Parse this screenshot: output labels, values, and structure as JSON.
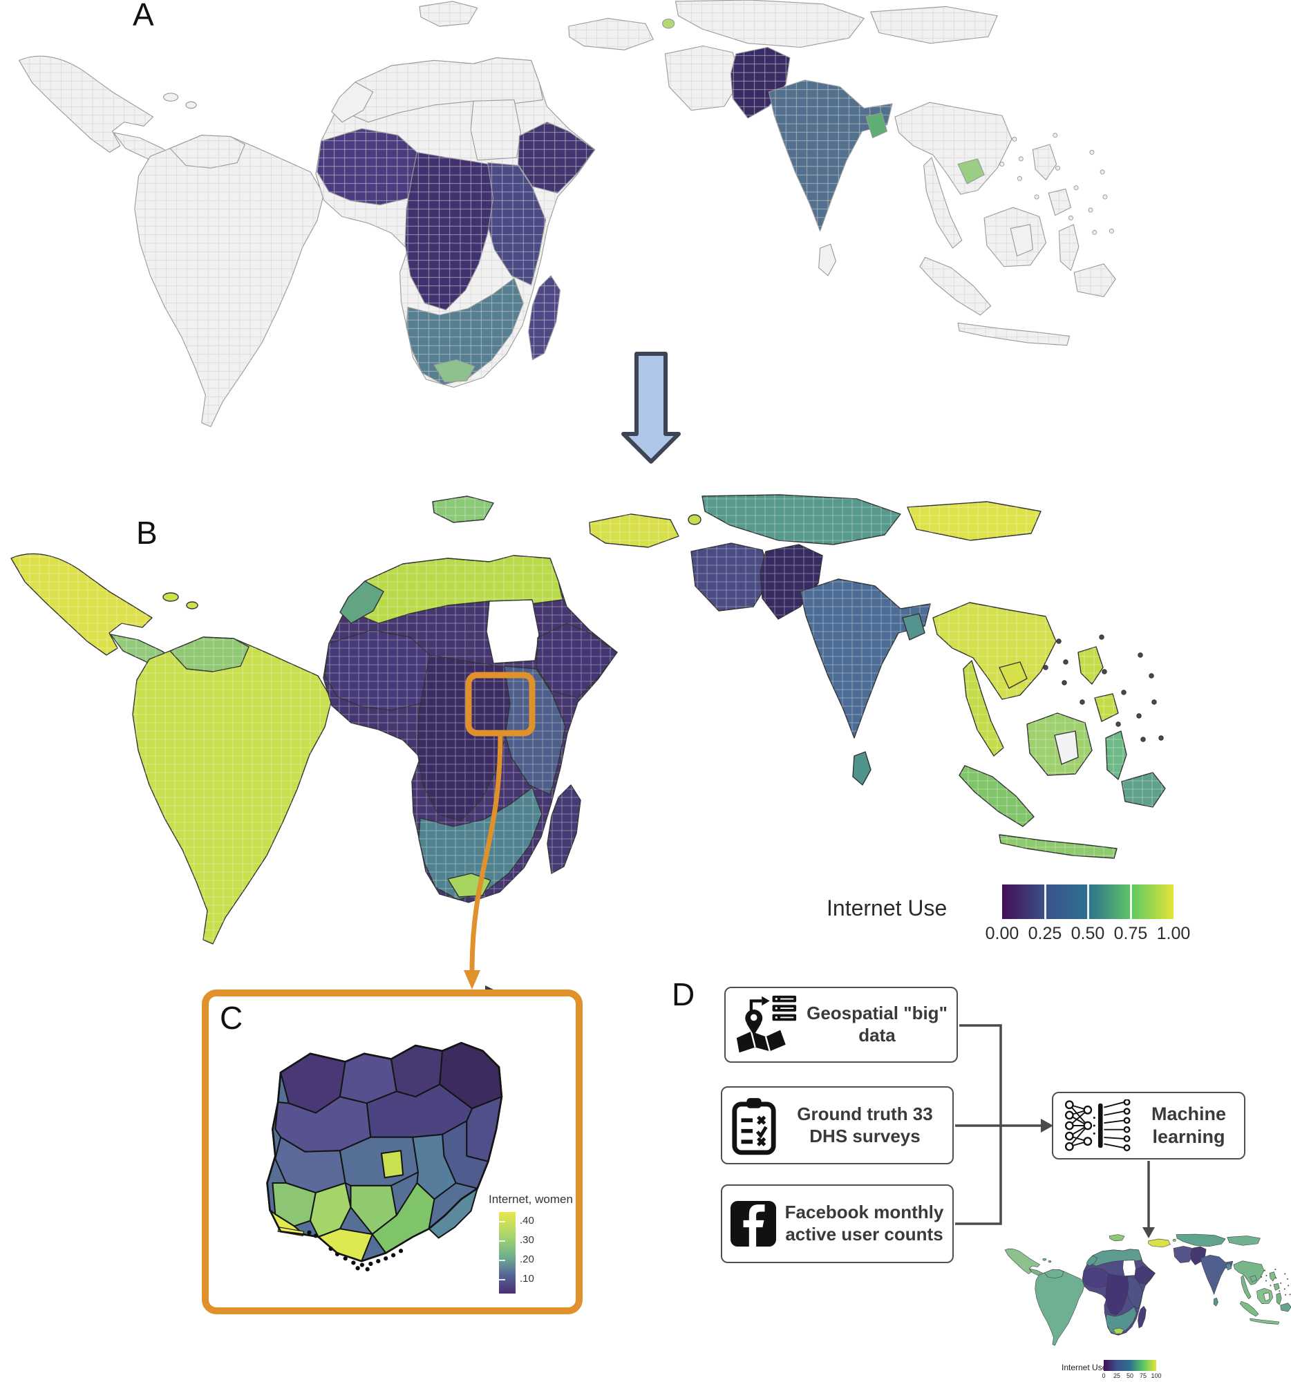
{
  "panels": {
    "a": {
      "label": "A"
    },
    "b": {
      "label": "B",
      "legend": {
        "title": "Internet Use",
        "ticks": [
          "0.00",
          "0.25",
          "0.50",
          "0.75",
          "1.00"
        ]
      }
    },
    "c": {
      "label": "C",
      "legend": {
        "title": "Internet, women",
        "ticks": [
          ".40",
          ".30",
          ".20",
          ".10"
        ]
      }
    },
    "d": {
      "label": "D",
      "flow_boxes": [
        {
          "id": "geospatial",
          "icon": "map-pin-server-icon",
          "text": "Geospatial \"big\" data"
        },
        {
          "id": "dhs",
          "icon": "clipboard-checklist-icon",
          "text": "Ground truth 33 DHS surveys"
        },
        {
          "id": "facebook",
          "icon": "facebook-icon",
          "text": "Facebook monthly active user counts"
        }
      ],
      "ml_box": {
        "icon": "neural-network-icon",
        "text": "Machine learning"
      },
      "mini_legend": {
        "title": "Internet Use",
        "ticks": [
          "0",
          "25",
          "50",
          "75",
          "100"
        ]
      }
    }
  },
  "colors": {
    "highlight_orange": "#E0912C",
    "arrow_blue_fill": "#AEC7E8",
    "arrow_blue_stroke": "#3D4555",
    "connector_gray": "#4A4A4A",
    "no_data_gray": "#F1F1F1",
    "viridis_stops": [
      "#440F54",
      "#3B528B",
      "#2D708E",
      "#5EC962",
      "#E3E538"
    ]
  },
  "map_colors": {
    "panel_a": {
      "default": "#F1F1F1",
      "stroke": "#9A9A9A",
      "regions": {
        "africaWest": "#4B3C80",
        "africaCentral": "#41316F",
        "africaEast": "#4A4A85",
        "ethiopiaHorn": "#43356F",
        "southernAfrica": "#577F92",
        "southAfricaGreen": "#8EC18E",
        "madagascar": "#4F4887",
        "pakistan": "#392B64",
        "india": "#53718F",
        "bangladesh": "#5FAE74",
        "cambodiaDot": "#9BCD84",
        "armeniaDot": "#B5D870",
        "islands": "#EDEDED"
      }
    },
    "panel_b": {
      "default": "#CBDF4D",
      "stroke": "#333333",
      "regions": {
        "mexico": "#DCE14B",
        "caribbean": "#CFE04D",
        "centralam": "#93C97B",
        "southamerica": "#C9DF4E",
        "colombia": "#90C873",
        "africaMain": "#46366F",
        "africaNorth": "#B9DA4B",
        "morocco": "#63A583",
        "africaWest": "#473A7A",
        "sudan": "#FFFFFF",
        "ethiopiaHorn": "#433672",
        "africaEast": "#4D5F8A",
        "africaCentral": "#3B2D64",
        "southernAfrica": "#50838F",
        "southAfricaGreen": "#A7D45F",
        "madagascar": "#463A75",
        "balkans": "#8BC877",
        "turkey": "#D7E04A",
        "armeniaDot": "#C8DD4B",
        "centralasia": "#579A8D",
        "mongolia": "#DDE24B",
        "iran": "#4C4C84",
        "pakistan": "#382B61",
        "india": "#4D6D96",
        "bangladesh": "#549390",
        "srilanka": "#50958C",
        "indochina": "#D3DF4C",
        "cambodiaDot": "#D8E049",
        "malaypen": "#C3DC4A",
        "philippines": "#C5DC4A",
        "borneo": "#9ED06D",
        "borneoWhite": "#F2F2F2",
        "sumatra": "#81C56B",
        "java": "#8ECA6E",
        "sulawesi": "#6FB987",
        "newguinea": "#5FA18B",
        "islands": "#4A4A4A"
      }
    },
    "mini": {
      "default": "#6FB092",
      "stroke": "#3A3A3A",
      "regions": {
        "mexico": "#8CC08D",
        "centralam": "#7BB58D",
        "southamerica": "#6FB092",
        "africaMain": "#514C86",
        "africaNorth": "#5E9B90",
        "morocco": "#5E9B90",
        "africaWest": "#4C4080",
        "sudan": "#FFFFFF",
        "ethiopiaHorn": "#473B76",
        "africaEast": "#4D5385",
        "africaCentral": "#433673",
        "southernAfrica": "#559390",
        "southAfricaGreen": "#A9D45F",
        "madagascar": "#483D78",
        "balkans": "#8BC877",
        "turkey": "#D8E04A",
        "armeniaDot": "#8BC877",
        "centralasia": "#60A38F",
        "mongolia": "#72B18D",
        "iran": "#55548A",
        "pakistan": "#463972",
        "india": "#505F8D",
        "bangladesh": "#579490",
        "srilanka": "#579490",
        "indochina": "#76B68A",
        "cambodiaDot": "#76B68A",
        "malaypen": "#79B889",
        "philippines": "#7FBD87",
        "borneo": "#85C18A",
        "borneoWhite": "#F2F2F2",
        "sumatra": "#7FBD87",
        "java": "#84C089",
        "sulawesi": "#74B488",
        "newguinea": "#63A68C",
        "islands": "#4A4A4A"
      }
    },
    "nigeria": {
      "base": "#566F96",
      "border": "#141414",
      "states": [
        "#4A3876",
        "#56518E",
        "#493973",
        "#3D2A5F",
        "#504F8A",
        "#575390",
        "#4C4480",
        "#4F5C90",
        "#5B6A99",
        "#566F96",
        "#CBE04E",
        "#567D9B",
        "#8CC573",
        "#A5D46A",
        "#E3E94F",
        "#90CA6F",
        "#DDE94E",
        "#7FC468",
        "#5B8A9E"
      ],
      "lagos_strip": "#EFEE58",
      "speckle": "#0B0B0B"
    }
  }
}
